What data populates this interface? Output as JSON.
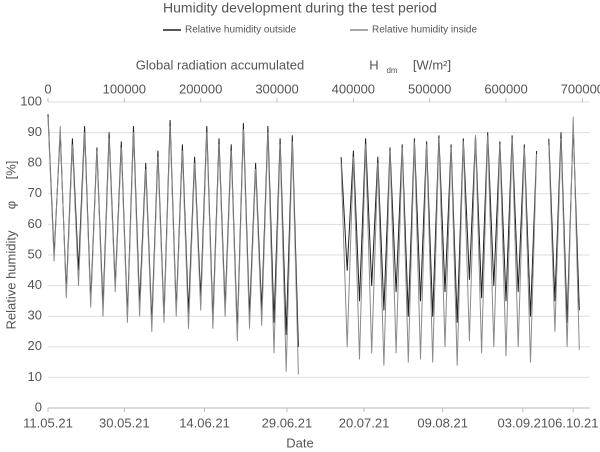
{
  "chart_data": {
    "type": "line",
    "title": "Humidity development during the test period",
    "x2_label": "Global radiation accumulated",
    "x2_symbol": "H",
    "x2_symbol_sub": "dm",
    "x2_unit": "[W/m²]",
    "y_label": "Relative humidity",
    "y_symbol": "φ",
    "y_unit": "[%]",
    "x_label": "Date",
    "xlim": [
      0,
      710000
    ],
    "xticks": [
      {
        "value": 0,
        "label": "11.05.21"
      },
      {
        "value": 100000,
        "label": "30.05.21"
      },
      {
        "value": 205000,
        "label": "14.06.21"
      },
      {
        "value": 313000,
        "label": "29.06.21"
      },
      {
        "value": 414000,
        "label": "20.07.21"
      },
      {
        "value": 517000,
        "label": "09.08.21"
      },
      {
        "value": 622000,
        "label": "03.09.21"
      },
      {
        "value": 688000,
        "label": "06.10.21"
      }
    ],
    "x2ticks": [
      0,
      100000,
      200000,
      300000,
      400000,
      500000,
      600000,
      700000
    ],
    "ylim": [
      0,
      100
    ],
    "yticks": [
      0,
      10,
      20,
      30,
      40,
      50,
      60,
      70,
      80,
      90,
      100
    ],
    "grid": true,
    "legend": "top",
    "x": [
      0,
      8000,
      16000,
      24000,
      32000,
      40000,
      48000,
      56000,
      64000,
      72000,
      80000,
      88000,
      96000,
      104000,
      112000,
      120000,
      128000,
      136000,
      144000,
      152000,
      160000,
      168000,
      176000,
      184000,
      192000,
      200000,
      208000,
      216000,
      224000,
      232000,
      240000,
      248000,
      256000,
      264000,
      272000,
      280000,
      288000,
      296000,
      304000,
      312000,
      320000,
      328000,
      356000,
      384000,
      392000,
      400000,
      408000,
      416000,
      424000,
      432000,
      440000,
      448000,
      456000,
      464000,
      472000,
      480000,
      488000,
      496000,
      504000,
      512000,
      520000,
      528000,
      536000,
      544000,
      552000,
      560000,
      568000,
      576000,
      584000,
      592000,
      600000,
      608000,
      616000,
      624000,
      632000,
      640000,
      648000,
      656000,
      664000,
      672000,
      680000,
      688000,
      696000
    ],
    "series": [
      {
        "name": "Relative humidity outside",
        "color": "#1e1e1e",
        "values": [
          96,
          50,
          90,
          38,
          88,
          45,
          92,
          35,
          85,
          33,
          90,
          40,
          87,
          30,
          92,
          34,
          80,
          28,
          84,
          30,
          94,
          32,
          86,
          31,
          82,
          36,
          92,
          29,
          88,
          33,
          86,
          25,
          93,
          30,
          80,
          32,
          92,
          28,
          88,
          24,
          89,
          20,
          null,
          82,
          45,
          84,
          35,
          88,
          40,
          82,
          32,
          85,
          38,
          86,
          30,
          88,
          35,
          87,
          30,
          89,
          38,
          86,
          28,
          88,
          42,
          89,
          36,
          90,
          40,
          87,
          35,
          89,
          38,
          86,
          30,
          84,
          null,
          88,
          35,
          90,
          28,
          92,
          32
        ]
      },
      {
        "name": "Relative humidity inside",
        "color": "#8a8a8a",
        "values": [
          95,
          48,
          92,
          36,
          86,
          40,
          90,
          33,
          84,
          30,
          88,
          38,
          85,
          28,
          90,
          30,
          78,
          25,
          82,
          28,
          92,
          30,
          84,
          26,
          80,
          32,
          90,
          26,
          86,
          30,
          84,
          22,
          91,
          26,
          78,
          27,
          90,
          18,
          86,
          12,
          87,
          11,
          null,
          80,
          20,
          82,
          16,
          86,
          18,
          80,
          14,
          84,
          18,
          85,
          15,
          87,
          16,
          86,
          15,
          88,
          20,
          85,
          14,
          87,
          22,
          89,
          18,
          89,
          20,
          86,
          17,
          88,
          20,
          85,
          15,
          83,
          null,
          86,
          25,
          88,
          20,
          95,
          19
        ]
      }
    ]
  }
}
